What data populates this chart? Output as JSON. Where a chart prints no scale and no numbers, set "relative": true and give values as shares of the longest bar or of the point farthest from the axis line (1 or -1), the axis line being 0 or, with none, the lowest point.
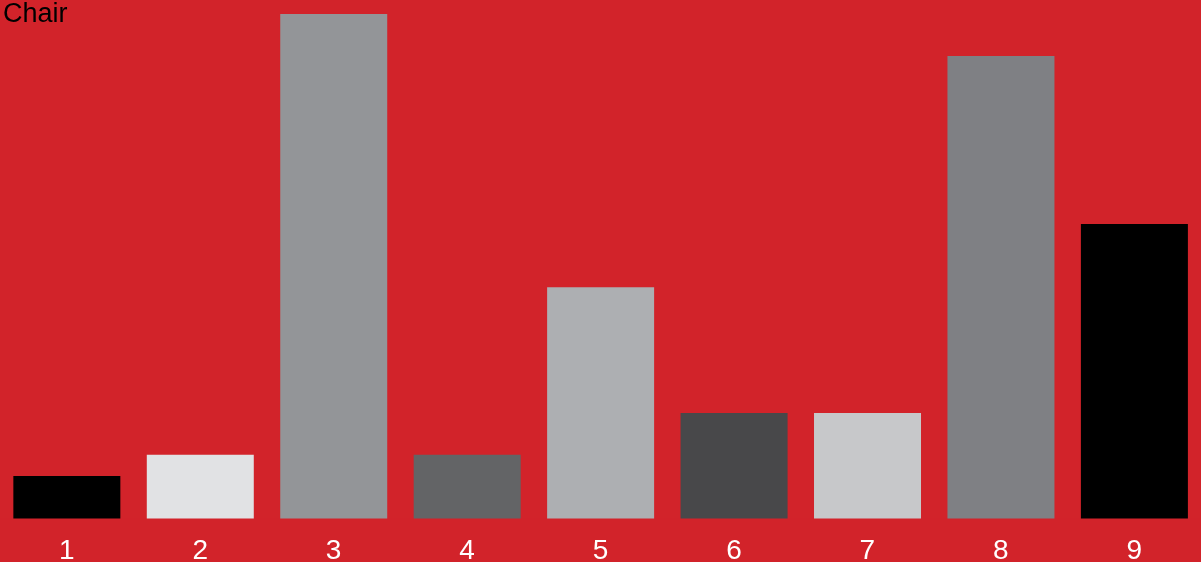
{
  "chart_data": {
    "type": "bar",
    "title": "Chair",
    "relative": true,
    "categories": [
      "1",
      "2",
      "3",
      "4",
      "5",
      "6",
      "7",
      "8",
      "9"
    ],
    "values": [
      0.085,
      0.127,
      1,
      0.127,
      0.459,
      0.21,
      0.21,
      0.917,
      0.584
    ],
    "colors": [
      "#000000",
      "#e1e2e4",
      "#939598",
      "#636466",
      "#adafb2",
      "#48484a",
      "#c7c8ca",
      "#7f8084",
      "#000000"
    ]
  }
}
